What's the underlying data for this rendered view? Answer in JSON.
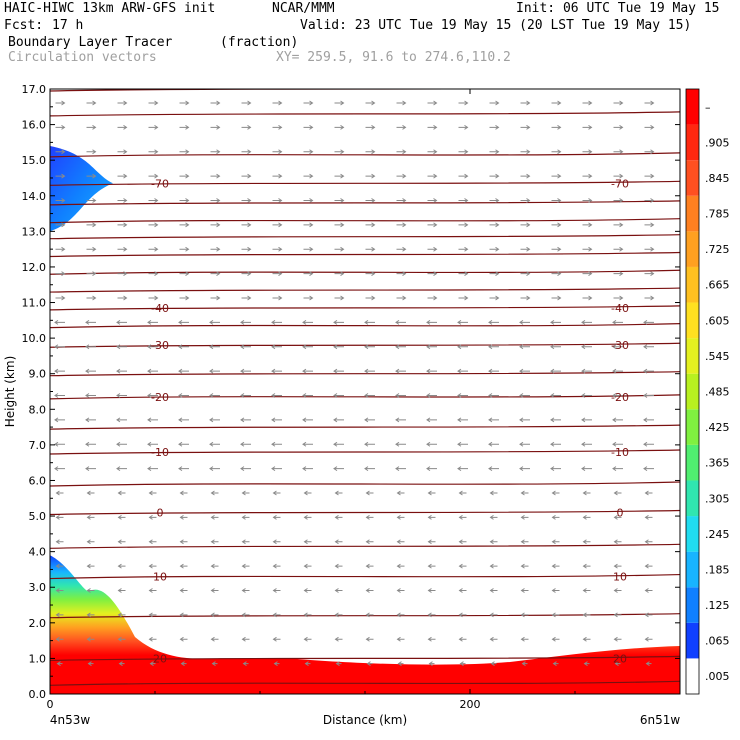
{
  "header": {
    "model": "HAIC-HIWC 13km ARW-GFS init",
    "org": "NCAR/MMM",
    "init": "Init: 06 UTC Tue 19 May 15",
    "fcst_label": "Fcst:",
    "fcst_value": "17 h",
    "valid": "Valid: 23 UTC Tue 19 May 15 (20 LST Tue 19 May 15)",
    "field_name": "Boundary Layer Tracer",
    "field_units": "(fraction)",
    "vector_label": "Circulation vectors",
    "xy_range": "XY= 259.5, 91.6 to 274.6,110.2"
  },
  "chart_data": {
    "type": "heatmap",
    "title": "Boundary Layer Tracer",
    "xlabel": "Distance (km)",
    "ylabel": "Height (km)",
    "xlim": [
      0,
      300
    ],
    "ylim": [
      0,
      17
    ],
    "x_ticks": [
      {
        "value": 0,
        "label": "0"
      },
      {
        "value": 200,
        "label": "200"
      }
    ],
    "x_end_labels": {
      "left": "4n53w",
      "right": "6n51w"
    },
    "y_ticks": [
      "0.0",
      "1.0",
      "2.0",
      "3.0",
      "4.0",
      "5.0",
      "6.0",
      "7.0",
      "8.0",
      "9.0",
      "10.0",
      "11.0",
      "12.0",
      "13.0",
      "14.0",
      "15.0",
      "16.0",
      "17.0"
    ],
    "colorbar": {
      "labels": [
        ".005",
        ".065",
        ".125",
        ".185",
        ".245",
        ".305",
        ".365",
        ".425",
        ".485",
        ".545",
        ".605",
        ".665",
        ".725",
        ".785",
        ".845",
        ".905",
        "–"
      ],
      "colors": [
        "#ffffff",
        "#1040ff",
        "#1080ff",
        "#18b4ff",
        "#20dcf0",
        "#30e6b0",
        "#50ee70",
        "#80f040",
        "#b8f020",
        "#e4f020",
        "#ffe020",
        "#ffc020",
        "#ffa020",
        "#ff8020",
        "#ff5020",
        "#ff2810",
        "#ff0000"
      ]
    },
    "temperature_contours": [
      {
        "label": "-70",
        "height": 14.35
      },
      {
        "label": "-40",
        "height": 10.85
      },
      {
        "label": "-30",
        "height": 9.8
      },
      {
        "label": "-20",
        "height": 8.35
      },
      {
        "label": "-10",
        "height": 6.8
      },
      {
        "label": "0",
        "height": 5.1
      },
      {
        "label": "10",
        "height": 3.3
      },
      {
        "label": "20",
        "height": 1.0
      }
    ],
    "tracer_upper_plume": {
      "x_extent": [
        0,
        30
      ],
      "height_range": [
        13.0,
        15.4
      ],
      "peak_height": 14.35
    },
    "tracer_boundary_layer": {
      "mixed_layer_top_km": 1.0,
      "left_plume_top_km": 3.9
    }
  }
}
